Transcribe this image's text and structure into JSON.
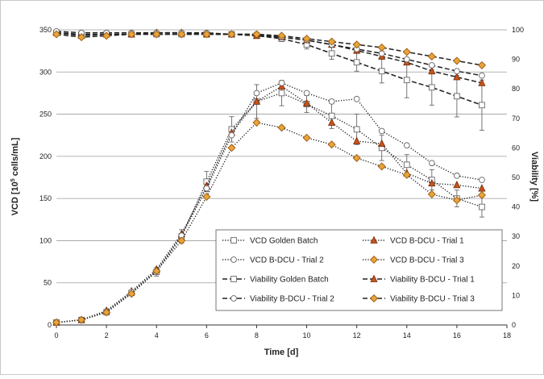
{
  "chart_data": {
    "type": "line",
    "xlabel": "Time [d]",
    "ylabel_left_parts": [
      "VCD [10",
      "5",
      " cells/mL]"
    ],
    "ylabel_right": "Viability [%]",
    "xlim": [
      0,
      18
    ],
    "ylim_left": [
      0,
      350
    ],
    "ylim_right": [
      0,
      100
    ],
    "xticks": [
      0,
      2,
      4,
      6,
      8,
      10,
      12,
      14,
      16,
      18
    ],
    "yticks_left": [
      0,
      50,
      100,
      150,
      200,
      250,
      300,
      350
    ],
    "yticks_right": [
      0,
      10,
      20,
      30,
      40,
      50,
      60,
      70,
      80,
      90,
      100
    ],
    "grid": "horizontal",
    "legend_placement": "bottom-right",
    "colors": {
      "orange": "#E8A33A",
      "orange_dark": "#C9551A",
      "line": "#222222",
      "grid": "#9e9e9e"
    },
    "series": [
      {
        "name": "VCD Golden Batch",
        "axis": "left",
        "marker": "square",
        "style": "dotted",
        "x": [
          0,
          1,
          2,
          3,
          4,
          5,
          6,
          7,
          8,
          9,
          10,
          11,
          12,
          13,
          14,
          15,
          16,
          17
        ],
        "y": [
          3,
          6,
          15,
          38,
          63,
          105,
          170,
          232,
          265,
          275,
          262,
          248,
          232,
          210,
          190,
          172,
          150,
          140
        ],
        "err": [
          0,
          0,
          2,
          3,
          5,
          8,
          12,
          15,
          20,
          15,
          10,
          15,
          18,
          15,
          12,
          12,
          10,
          12
        ]
      },
      {
        "name": "VCD B-DCU - Trial 1",
        "axis": "left",
        "marker": "triangle",
        "style": "dotted",
        "x": [
          0,
          1,
          2,
          3,
          4,
          5,
          6,
          7,
          8,
          9,
          10,
          11,
          12,
          13,
          14,
          15,
          16,
          17
        ],
        "y": [
          3,
          6,
          17,
          40,
          66,
          108,
          165,
          228,
          265,
          283,
          263,
          240,
          218,
          215,
          180,
          168,
          166,
          162
        ],
        "err": []
      },
      {
        "name": "VCD B-DCU - Trial 2",
        "axis": "left",
        "marker": "circle",
        "style": "dotted",
        "x": [
          0,
          1,
          2,
          3,
          4,
          5,
          6,
          7,
          8,
          9,
          10,
          11,
          12,
          13,
          14,
          15,
          16,
          17
        ],
        "y": [
          3,
          6,
          16,
          39,
          64,
          106,
          162,
          225,
          275,
          287,
          275,
          265,
          268,
          230,
          213,
          192,
          177,
          172
        ],
        "err": []
      },
      {
        "name": "VCD B-DCU - Trial 3",
        "axis": "left",
        "marker": "diamond",
        "style": "dotted",
        "x": [
          0,
          1,
          2,
          3,
          4,
          5,
          6,
          7,
          8,
          9,
          10,
          11,
          12,
          13,
          14,
          15,
          16,
          17
        ],
        "y": [
          3,
          6,
          15,
          37,
          64,
          100,
          152,
          210,
          240,
          234,
          222,
          214,
          198,
          188,
          178,
          155,
          148,
          154
        ],
        "err": []
      },
      {
        "name": "Viability Golden Batch",
        "axis": "right",
        "marker": "square",
        "style": "dashed",
        "x": [
          0,
          1,
          2,
          3,
          4,
          5,
          6,
          7,
          8,
          9,
          10,
          11,
          12,
          13,
          14,
          15,
          16,
          17
        ],
        "y": [
          99,
          98.5,
          98.5,
          98.5,
          98.5,
          98.5,
          98.5,
          98.5,
          98,
          97,
          95,
          92,
          89,
          86,
          83,
          80.5,
          77.5,
          74.5
        ],
        "err": [
          0.5,
          0.5,
          0.5,
          0.5,
          0.5,
          0.5,
          0.5,
          0.5,
          0.5,
          1,
          1.5,
          2,
          3,
          4,
          6,
          6,
          7,
          8.5
        ]
      },
      {
        "name": "Viability B-DCU - Trial 1",
        "axis": "right",
        "marker": "triangle",
        "style": "dashed",
        "x": [
          0,
          1,
          2,
          3,
          4,
          5,
          6,
          7,
          8,
          9,
          10,
          11,
          12,
          13,
          14,
          15,
          16,
          17
        ],
        "y": [
          99,
          98,
          98.5,
          98.5,
          99,
          99,
          98.5,
          98.5,
          98,
          97.5,
          96.5,
          95,
          93,
          91,
          89,
          86,
          84,
          82
        ],
        "err": []
      },
      {
        "name": "Viability B-DCU - Trial 2",
        "axis": "right",
        "marker": "circle",
        "style": "dashed",
        "x": [
          0,
          1,
          2,
          3,
          4,
          5,
          6,
          7,
          8,
          9,
          10,
          11,
          12,
          13,
          14,
          15,
          16,
          17
        ],
        "y": [
          99.5,
          99,
          99,
          99,
          99,
          99,
          99,
          98.5,
          98.5,
          97.5,
          96.5,
          95,
          93.5,
          92,
          90,
          88,
          86,
          84.5
        ],
        "err": []
      },
      {
        "name": "Viability B-DCU - Trial 3",
        "axis": "right",
        "marker": "diamond",
        "style": "dashed",
        "x": [
          0,
          1,
          2,
          3,
          4,
          5,
          6,
          7,
          8,
          9,
          10,
          11,
          12,
          13,
          14,
          15,
          16,
          17
        ],
        "y": [
          98.5,
          97.5,
          98,
          98.5,
          98.5,
          98.5,
          98.5,
          98.5,
          98.5,
          98,
          97,
          96,
          95,
          94,
          92.5,
          91,
          89.5,
          88
        ],
        "err": []
      }
    ]
  }
}
